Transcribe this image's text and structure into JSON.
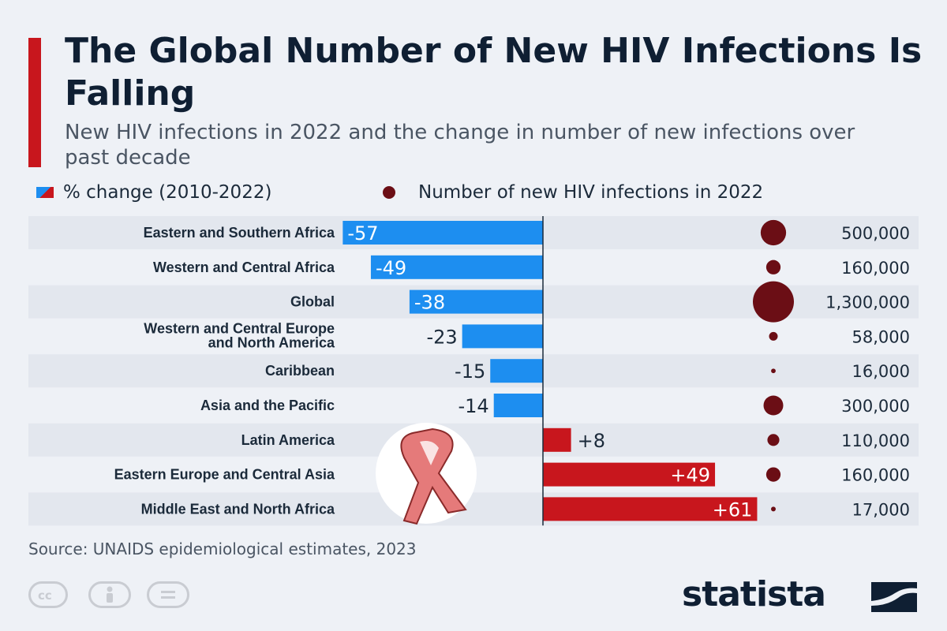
{
  "title": "The Global Number of New HIV Infections Is Falling",
  "subtitle": "New HIV infections in 2022 and the change in number of new infections over past decade",
  "legend": {
    "pct_label": "% change (2010-2022)",
    "infections_label": "Number of new HIV infections in 2022"
  },
  "source": "Source: UNAIDS epidemiological estimates, 2023",
  "brand": "statista",
  "colors": {
    "negative": "#1d8ef0",
    "positive": "#c8161d",
    "bubble": "#6b0e15",
    "row_band": "#e3e7ee",
    "ribbon": "#e57a7a"
  },
  "icons": [
    "creative-commons-icon",
    "attribution-icon",
    "no-derivatives-icon",
    "red-ribbon-icon",
    "statista-logo-icon"
  ],
  "chart_data": {
    "type": "bar",
    "title": "The Global Number of New HIV Infections Is Falling",
    "subtitle": "New HIV infections in 2022 and the change in number of new infections over past decade",
    "categories": [
      "Eastern and Southern Africa",
      "Western and Central Africa",
      "Global",
      "Western and Central Europe and North America",
      "Caribbean",
      "Asia and the Pacific",
      "Latin America",
      "Eastern Europe and Central Asia",
      "Middle East and North Africa"
    ],
    "category_lines": [
      [
        "Eastern and Southern Africa"
      ],
      [
        "Western and Central Africa"
      ],
      [
        "Global"
      ],
      [
        "Western and Central Europe",
        "and North America"
      ],
      [
        "Caribbean"
      ],
      [
        "Asia and the Pacific"
      ],
      [
        "Latin America"
      ],
      [
        "Eastern Europe and Central Asia"
      ],
      [
        "Middle East and North Africa"
      ]
    ],
    "series": [
      {
        "name": "% change (2010-2022)",
        "values": [
          -57,
          -49,
          -38,
          -23,
          -15,
          -14,
          8,
          49,
          61
        ],
        "labels": [
          "-57",
          "-49",
          "-38",
          "-23",
          "-15",
          "-14",
          "+8",
          "+49",
          "+61"
        ]
      },
      {
        "name": "Number of new HIV infections in 2022",
        "values": [
          500000,
          160000,
          1300000,
          58000,
          16000,
          300000,
          110000,
          160000,
          17000
        ],
        "labels": [
          "500,000",
          "160,000",
          "1,300,000",
          "58,000",
          "16,000",
          "300,000",
          "110,000",
          "160,000",
          "17,000"
        ]
      }
    ],
    "xlim": [
      -57,
      61
    ],
    "legend_position": "top",
    "grid": false
  }
}
